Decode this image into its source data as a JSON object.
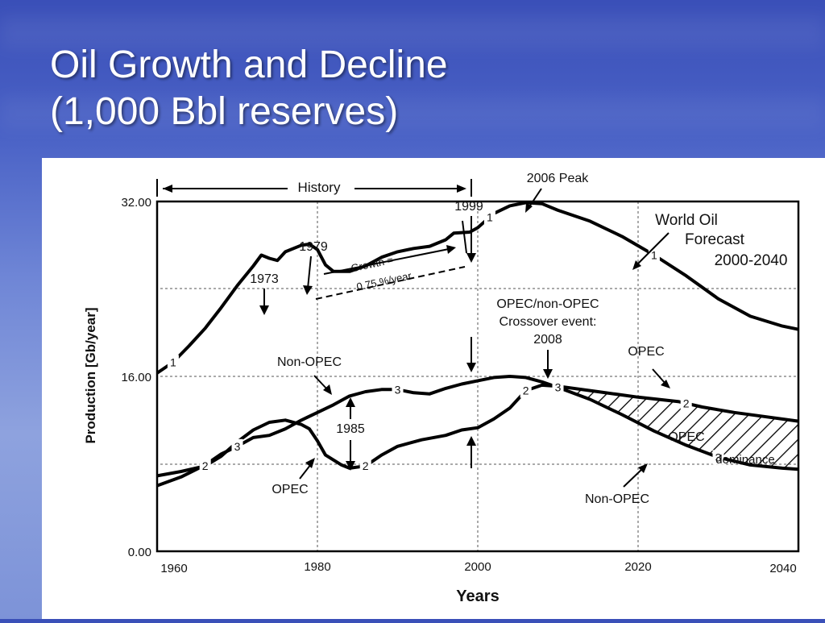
{
  "slide": {
    "title_line1": "Oil Growth and Decline",
    "title_line2": "(1,000 Bbl reserves)"
  },
  "chart_data": {
    "type": "line",
    "xlabel": "Years",
    "ylabel": "Production  [Gb/year]",
    "xlim": [
      1960,
      2040
    ],
    "ylim": [
      0,
      32
    ],
    "x_ticks": [
      "1960",
      "1980",
      "2000",
      "2020",
      "2040"
    ],
    "y_ticks": [
      "0.00",
      "16.00",
      "32.00"
    ],
    "grid": true,
    "series": [
      {
        "id": "1",
        "marker": "1",
        "label_x": [
          1962,
          2001.5,
          2022
        ],
        "points": [
          [
            1960,
            16.3
          ],
          [
            1962,
            17.3
          ],
          [
            1964,
            18.8
          ],
          [
            1966,
            20.4
          ],
          [
            1968,
            22.3
          ],
          [
            1970,
            24.3
          ],
          [
            1972,
            26.1
          ],
          [
            1973,
            27.1
          ],
          [
            1974,
            26.8
          ],
          [
            1975,
            26.6
          ],
          [
            1976,
            27.4
          ],
          [
            1978,
            28.0
          ],
          [
            1979,
            28.1
          ],
          [
            1980,
            27.6
          ],
          [
            1981,
            26.2
          ],
          [
            1982,
            25.6
          ],
          [
            1984,
            25.6
          ],
          [
            1986,
            26.1
          ],
          [
            1988,
            26.9
          ],
          [
            1990,
            27.4
          ],
          [
            1992,
            27.7
          ],
          [
            1994,
            27.9
          ],
          [
            1996,
            28.5
          ],
          [
            1997,
            29.1
          ],
          [
            1999,
            29.2
          ],
          [
            2000,
            29.6
          ],
          [
            2002,
            30.9
          ],
          [
            2004,
            31.6
          ],
          [
            2006,
            31.9
          ],
          [
            2008,
            31.8
          ],
          [
            2010,
            31.2
          ],
          [
            2014,
            30.2
          ],
          [
            2018,
            28.8
          ],
          [
            2022,
            27.1
          ],
          [
            2026,
            25.2
          ],
          [
            2030,
            23.1
          ],
          [
            2034,
            21.5
          ],
          [
            2038,
            20.6
          ],
          [
            2040,
            20.3
          ]
        ]
      },
      {
        "id": "2",
        "marker": "2",
        "label_x": [
          1966,
          1986,
          2006,
          2026
        ],
        "points": [
          [
            1960,
            6.9
          ],
          [
            1963,
            7.3
          ],
          [
            1966,
            7.8
          ],
          [
            1968,
            8.7
          ],
          [
            1970,
            10.0
          ],
          [
            1972,
            11.1
          ],
          [
            1974,
            11.8
          ],
          [
            1976,
            12.0
          ],
          [
            1978,
            11.6
          ],
          [
            1979,
            11.2
          ],
          [
            1980,
            10.1
          ],
          [
            1981,
            8.8
          ],
          [
            1983,
            7.9
          ],
          [
            1984,
            7.6
          ],
          [
            1986,
            7.8
          ],
          [
            1988,
            8.8
          ],
          [
            1990,
            9.6
          ],
          [
            1993,
            10.2
          ],
          [
            1996,
            10.6
          ],
          [
            1998,
            11.1
          ],
          [
            2000,
            11.3
          ],
          [
            2002,
            12.1
          ],
          [
            2004,
            13.1
          ],
          [
            2006,
            14.7
          ],
          [
            2008,
            15.2
          ],
          [
            2010,
            15.1
          ],
          [
            2015,
            14.6
          ],
          [
            2020,
            14.1
          ],
          [
            2025,
            13.7
          ],
          [
            2028,
            13.2
          ],
          [
            2032,
            12.7
          ],
          [
            2036,
            12.3
          ],
          [
            2040,
            11.9
          ]
        ]
      },
      {
        "id": "3",
        "marker": "3",
        "label_x": [
          1970,
          1990,
          2010,
          2030
        ],
        "points": [
          [
            1960,
            6.0
          ],
          [
            1963,
            6.8
          ],
          [
            1966,
            7.9
          ],
          [
            1968,
            8.9
          ],
          [
            1970,
            9.6
          ],
          [
            1972,
            10.4
          ],
          [
            1974,
            10.6
          ],
          [
            1976,
            11.2
          ],
          [
            1978,
            12.0
          ],
          [
            1980,
            12.7
          ],
          [
            1982,
            13.4
          ],
          [
            1984,
            14.2
          ],
          [
            1986,
            14.6
          ],
          [
            1988,
            14.8
          ],
          [
            1990,
            14.8
          ],
          [
            1992,
            14.5
          ],
          [
            1994,
            14.4
          ],
          [
            1996,
            14.9
          ],
          [
            1998,
            15.3
          ],
          [
            2000,
            15.6
          ],
          [
            2002,
            15.9
          ],
          [
            2004,
            16.0
          ],
          [
            2006,
            15.9
          ],
          [
            2008,
            15.5
          ],
          [
            2010,
            15.0
          ],
          [
            2014,
            13.9
          ],
          [
            2018,
            12.5
          ],
          [
            2022,
            11.0
          ],
          [
            2026,
            9.7
          ],
          [
            2030,
            8.6
          ],
          [
            2034,
            7.9
          ],
          [
            2038,
            7.6
          ],
          [
            2040,
            7.5
          ]
        ]
      }
    ],
    "annotations": {
      "history": "History",
      "peak_2006": "2006 Peak",
      "year_1999": "1999",
      "year_1979": "1979",
      "year_1973": "1973",
      "year_1985": "1985",
      "growth_line1": "Growth =",
      "growth_line2": "0.75 %/year",
      "world_oil_1": "World Oil",
      "world_oil_2": "Forecast",
      "world_oil_3": "2000-2040",
      "crossover_1": "OPEC/non-OPEC",
      "crossover_2": "Crossover event:",
      "crossover_3": "2008",
      "non_opec_top": "Non-OPEC",
      "opec_left": "OPEC",
      "opec_right": "OPEC",
      "opec_dom": "OPEC",
      "dominance": "dominance",
      "non_opec_bottom": "Non-OPEC"
    }
  }
}
